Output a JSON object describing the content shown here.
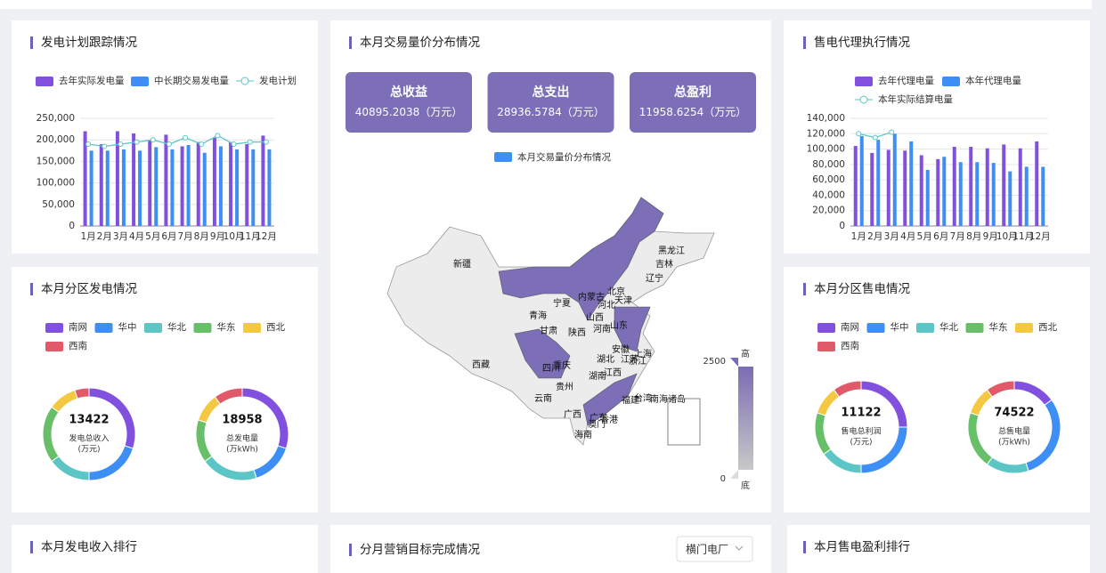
{
  "chart_data": [
    {
      "type": "bar",
      "title": "发电计划跟踪情况",
      "categories": [
        "1月",
        "2月",
        "3月",
        "4月",
        "5月",
        "6月",
        "7月",
        "8月",
        "9月",
        "10月",
        "11月",
        "12月"
      ],
      "series": [
        {
          "name": "去年实际发电量",
          "color": "#8250df",
          "values": [
            220000,
            190000,
            220000,
            215000,
            200000,
            212000,
            185000,
            195000,
            205000,
            195000,
            190000,
            210000
          ]
        },
        {
          "name": "中长期交易发电量",
          "color": "#3d8ef5",
          "values": [
            175000,
            175000,
            178000,
            175000,
            183000,
            178000,
            188000,
            170000,
            185000,
            178000,
            178000,
            178000
          ]
        },
        {
          "name": "发电计划",
          "type": "line",
          "color": "#5cc5c5",
          "values": [
            190000,
            185000,
            190000,
            195000,
            200000,
            190000,
            205000,
            190000,
            210000,
            190000,
            195000,
            195000
          ]
        }
      ],
      "ylim": [
        0,
        250000
      ],
      "yticks": [
        0,
        {
          "value": 50000,
          "label": "50,000"
        },
        {
          "value": 100000,
          "label": "100,000"
        },
        {
          "value": 150000,
          "label": "150,000"
        },
        {
          "value": 200000,
          "label": "200,000"
        },
        {
          "value": 250000,
          "label": "250,000"
        }
      ],
      "grid": true
    },
    {
      "type": "map",
      "title": "本月交易量价分布情况",
      "legend": "本月交易量价分布情况",
      "color": "#3d8ef5",
      "regions": [
        "新疆",
        "西藏",
        "青海",
        "甘肃",
        "宁夏",
        "内蒙古",
        "黑龙江",
        "吉林",
        "辽宁",
        "北京",
        "天津",
        "河北",
        "山西",
        "陕西",
        "山东",
        "河南",
        "四川",
        "重庆",
        "湖北",
        "安徽",
        "江苏",
        "上海",
        "浙江",
        "江西",
        "湖南",
        "贵州",
        "云南",
        "广西",
        "广东",
        "福建",
        "台湾",
        "香港",
        "澳门",
        "海南",
        "南海诸岛"
      ],
      "visual_range": [
        0,
        2500
      ],
      "visual_labels": [
        "底",
        "高"
      ]
    },
    {
      "type": "bar",
      "title": "售电代理执行情况",
      "categories": [
        "1月",
        "2月",
        "3月",
        "4月",
        "5月",
        "6月",
        "7月",
        "8月",
        "9月",
        "10月",
        "11月",
        "12月"
      ],
      "series": [
        {
          "name": "去年代理电量",
          "color": "#8250df",
          "values": [
            104000,
            95000,
            99000,
            98000,
            92000,
            87000,
            103000,
            103000,
            101000,
            106000,
            101000,
            110000
          ]
        },
        {
          "name": "本年代理电量",
          "color": "#3d8ef5",
          "values": [
            117000,
            112000,
            120000,
            110000,
            73000,
            90000,
            83000,
            83000,
            82000,
            71000,
            77000,
            77000
          ]
        },
        {
          "name": "本年实际结算电量",
          "type": "line",
          "color": "#5cc5c5",
          "values": [
            120000,
            115000,
            122000,
            null,
            null,
            null,
            null,
            null,
            null,
            null,
            null,
            null
          ]
        }
      ],
      "ylim": [
        0,
        140000
      ],
      "yticks": [
        0,
        {
          "value": 20000,
          "label": "20,000"
        },
        {
          "value": 40000,
          "label": "40,000"
        },
        {
          "value": 60000,
          "label": "60,000"
        },
        {
          "value": 80000,
          "label": "80,000"
        },
        {
          "value": 100000,
          "label": "100,000"
        },
        {
          "value": 120000,
          "label": "120,000"
        },
        {
          "value": 140000,
          "label": "140,000"
        }
      ],
      "grid": true
    },
    {
      "type": "donut",
      "title": "本月分区发电情况",
      "categories": [
        "南网",
        "华中",
        "华北",
        "华东",
        "西北",
        "西南"
      ],
      "colors": [
        "#8250df",
        "#3d8ef5",
        "#5cc5c5",
        "#67c068",
        "#f5c842",
        "#e05a6a"
      ],
      "rings": [
        {
          "total": 13422,
          "label_lines": [
            "发电总收入",
            "(万元)"
          ],
          "values": [
            30,
            20,
            15,
            20,
            10,
            5
          ]
        },
        {
          "total": 18958,
          "label_lines": [
            "总发电量",
            "(万kWh)"
          ],
          "values": [
            30,
            15,
            20,
            15,
            10,
            10
          ]
        }
      ]
    },
    {
      "type": "donut",
      "title": "本月分区售电情况",
      "categories": [
        "南网",
        "华中",
        "华北",
        "华东",
        "西北",
        "西南"
      ],
      "colors": [
        "#8250df",
        "#3d8ef5",
        "#5cc5c5",
        "#67c068",
        "#f5c842",
        "#e05a6a"
      ],
      "rings": [
        {
          "total": 11122,
          "label_lines": [
            "售电总利润",
            "(万元)"
          ],
          "values": [
            25,
            25,
            15,
            15,
            10,
            10
          ]
        },
        {
          "total": 74522,
          "label_lines": [
            "总售电量",
            "(万kWh)"
          ],
          "values": [
            15,
            30,
            15,
            20,
            10,
            10
          ]
        }
      ]
    }
  ],
  "summary_cards": [
    {
      "title": "总收益",
      "value": 40895.2038,
      "unit": "（万元）"
    },
    {
      "title": "总支出",
      "value": 28936.5784,
      "unit": "（万元）"
    },
    {
      "title": "总盈利",
      "value": 11958.6254,
      "unit": "（万元）"
    }
  ],
  "bottom_panels": [
    {
      "title": "本月发电收入排行"
    },
    {
      "title": "分月营销目标完成情况"
    },
    {
      "title": "本月售电盈利排行"
    }
  ],
  "dropdown": "横门电厂"
}
